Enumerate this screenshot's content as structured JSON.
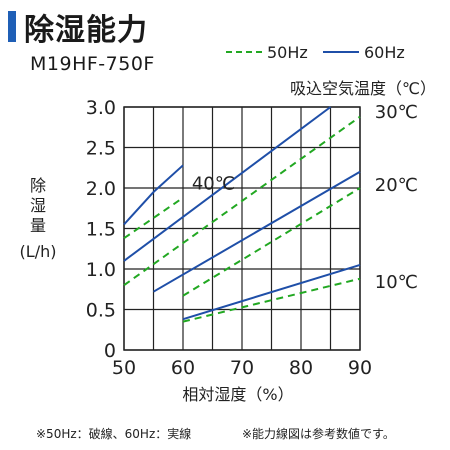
{
  "header": {
    "title": "除湿能力",
    "model": "M19HF-750F"
  },
  "legend": {
    "dashed_label": "50Hz",
    "solid_label": "60Hz",
    "dashed_color": "#22a822",
    "solid_color": "#1f4fa8"
  },
  "footnote": {
    "left": "※50Hz：破線、60Hz：実線",
    "right": "※能力線図は参考数値です。"
  },
  "chart_data": {
    "type": "line",
    "xlabel": "相対湿度（%）",
    "ylabel": [
      "除",
      "湿",
      "量",
      "(L/h)"
    ],
    "series_group_title": "吸込空気温度（℃）",
    "xlim": [
      50,
      90
    ],
    "ylim": [
      0,
      3.0
    ],
    "x_ticks": [
      "50",
      "60",
      "70",
      "80",
      "90"
    ],
    "y_ticks": [
      "0",
      "0.5",
      "1.0",
      "1.5",
      "2.0",
      "2.5",
      "3.0"
    ],
    "grid": true,
    "series": [
      {
        "name": "40℃",
        "freq": "60Hz",
        "style": "solid",
        "x": [
          50,
          55
        ],
        "y": [
          1.55,
          1.95
        ]
      },
      {
        "name": "40℃",
        "freq": "60Hz",
        "style": "solid",
        "x": [
          55,
          60
        ],
        "y": [
          1.95,
          2.28
        ]
      },
      {
        "name": "40℃",
        "freq": "50Hz",
        "style": "dashed",
        "x": [
          50,
          60
        ],
        "y": [
          1.38,
          1.88
        ]
      },
      {
        "name": "30℃",
        "freq": "60Hz",
        "style": "solid",
        "x": [
          50,
          85
        ],
        "y": [
          1.1,
          3.0
        ]
      },
      {
        "name": "30℃",
        "freq": "50Hz",
        "style": "dashed",
        "x": [
          50,
          90
        ],
        "y": [
          0.8,
          2.88
        ]
      },
      {
        "name": "20℃",
        "freq": "60Hz",
        "style": "solid",
        "x": [
          55,
          90
        ],
        "y": [
          0.72,
          2.2
        ]
      },
      {
        "name": "20℃",
        "freq": "50Hz",
        "style": "dashed",
        "x": [
          60,
          90
        ],
        "y": [
          0.67,
          2.0
        ]
      },
      {
        "name": "10℃",
        "freq": "60Hz",
        "style": "solid",
        "x": [
          60,
          90
        ],
        "y": [
          0.38,
          1.05
        ]
      },
      {
        "name": "10℃",
        "freq": "50Hz",
        "style": "dashed",
        "x": [
          60,
          90
        ],
        "y": [
          0.35,
          0.88
        ]
      }
    ],
    "labels": [
      {
        "text": "40℃",
        "x": 61.5,
        "y": 2.07
      },
      {
        "text": "30℃",
        "x": 92.5,
        "y": 2.95
      },
      {
        "text": "20℃",
        "x": 92.5,
        "y": 2.05
      },
      {
        "text": "10℃",
        "x": 92.5,
        "y": 0.85
      }
    ]
  }
}
